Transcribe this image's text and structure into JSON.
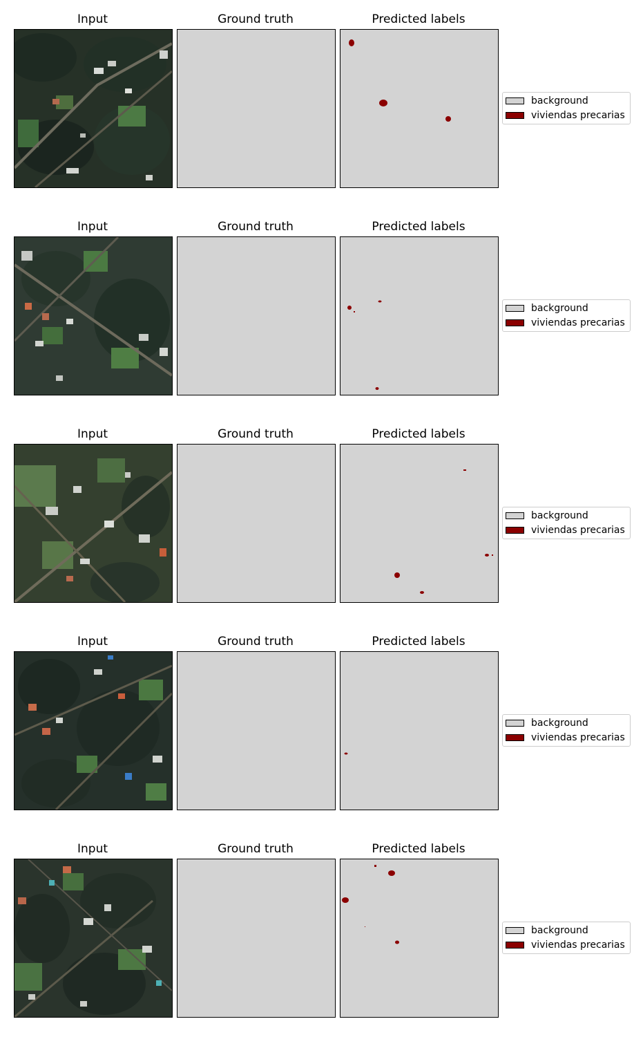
{
  "colors": {
    "background": "#d3d3d3",
    "viviendas_precarias": "#8b0000",
    "legend_border": "#cccccc"
  },
  "panel_titles": {
    "input": "Input",
    "ground_truth": "Ground truth",
    "predicted": "Predicted labels"
  },
  "legend": {
    "background": "background",
    "viviendas_precarias": "viviendas precarias"
  },
  "rows": [
    {
      "id": 1
    },
    {
      "id": 2
    },
    {
      "id": 3
    },
    {
      "id": 4
    },
    {
      "id": 5
    }
  ]
}
